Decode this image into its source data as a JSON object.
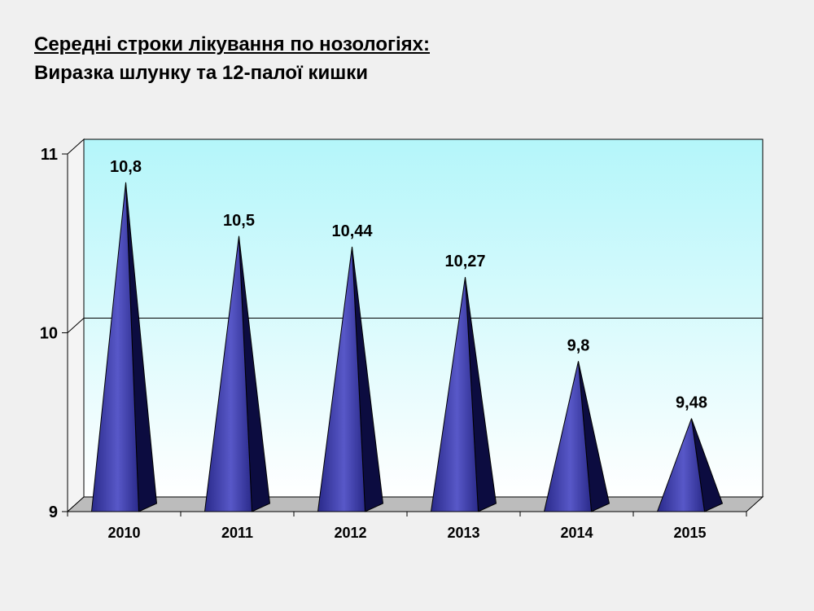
{
  "header": {
    "title": "Середні строки лікування по нозологіях:",
    "subtitle": "Виразка шлунку та 12-палої кишки"
  },
  "chart_data": {
    "type": "bar",
    "shape": "cone",
    "categories": [
      "2010",
      "2011",
      "2012",
      "2013",
      "2014",
      "2015"
    ],
    "values": [
      10.8,
      10.5,
      10.44,
      10.27,
      9.8,
      9.48
    ],
    "data_labels": [
      "10,8",
      "10,5",
      "10,44",
      "10,27",
      "9,8",
      "9,48"
    ],
    "ylim": [
      9,
      11
    ],
    "yticks": [
      9,
      10,
      11
    ],
    "ytick_labels": [
      "9",
      "10",
      "11"
    ],
    "grid": true,
    "legend": "none",
    "colors": {
      "cone_light": "#5858c8",
      "cone_mid": "#2a2a8a",
      "cone_dark": "#0c0c40",
      "wall_top": "#b4f6fa",
      "wall_bottom": "#ffffff",
      "floor": "#bcbcbc"
    }
  }
}
